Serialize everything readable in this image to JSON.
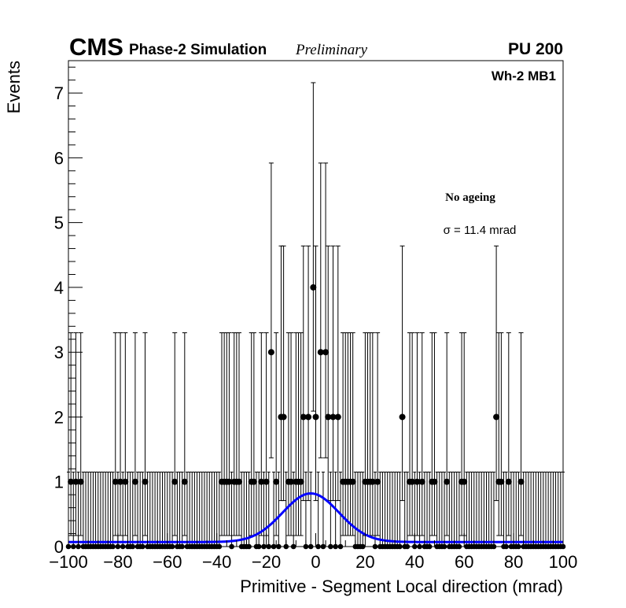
{
  "header": {
    "experiment": "CMS",
    "subtitle": "Phase-2 Simulation",
    "status": "Preliminary",
    "pileup": "PU 200"
  },
  "chamber_label": "Wh-2 MB1",
  "annotations": {
    "condition": "No ageing",
    "sigma_text": "σ = 11.4 mrad"
  },
  "chart_data": {
    "type": "scatter",
    "xlabel": "Primitive - Segment Local direction (mrad)",
    "ylabel": "Events",
    "xlim": [
      -100,
      100
    ],
    "ylim": [
      0,
      7.5
    ],
    "x_ticks": [
      "−100",
      "−80",
      "−60",
      "−40",
      "−20",
      "0",
      "20",
      "40",
      "60",
      "80",
      "100"
    ],
    "y_ticks": [
      "0",
      "1",
      "2",
      "3",
      "4",
      "5",
      "6",
      "7"
    ],
    "grid": false,
    "series": [
      {
        "marker": "filled circle with Poisson error bars",
        "color": "#000000",
        "points": [
          {
            "x": -18,
            "y": 3
          },
          {
            "x": -14,
            "y": 2
          },
          {
            "x": -13,
            "y": 2
          },
          {
            "x": -5,
            "y": 2
          },
          {
            "x": -3,
            "y": 2
          },
          {
            "x": -1,
            "y": 4
          },
          {
            "x": 0,
            "y": 2
          },
          {
            "x": 2,
            "y": 3
          },
          {
            "x": 4,
            "y": 3
          },
          {
            "x": 5,
            "y": 2
          },
          {
            "x": 7,
            "y": 2
          },
          {
            "x": 9,
            "y": 2
          },
          {
            "x": 35,
            "y": 2
          },
          {
            "x": 73,
            "y": 2
          },
          {
            "x": -99,
            "y": 1
          },
          {
            "x": -97,
            "y": 1
          },
          {
            "x": -95,
            "y": 1
          },
          {
            "x": -81,
            "y": 1
          },
          {
            "x": -79,
            "y": 1
          },
          {
            "x": -77,
            "y": 1
          },
          {
            "x": -73,
            "y": 1
          },
          {
            "x": -69,
            "y": 1
          },
          {
            "x": -57,
            "y": 1
          },
          {
            "x": -53,
            "y": 1
          },
          {
            "x": -38,
            "y": 1
          },
          {
            "x": -37,
            "y": 1
          },
          {
            "x": -36,
            "y": 1
          },
          {
            "x": -35,
            "y": 1
          },
          {
            "x": -33,
            "y": 1
          },
          {
            "x": -32,
            "y": 1
          },
          {
            "x": -31,
            "y": 1
          },
          {
            "x": -26,
            "y": 1
          },
          {
            "x": -25,
            "y": 1
          },
          {
            "x": -22,
            "y": 1
          },
          {
            "x": -20,
            "y": 1
          },
          {
            "x": -16,
            "y": 1
          },
          {
            "x": -11,
            "y": 1
          },
          {
            "x": -10,
            "y": 1
          },
          {
            "x": -8,
            "y": 1
          },
          {
            "x": -7,
            "y": 1
          },
          {
            "x": -6,
            "y": 1
          },
          {
            "x": 11,
            "y": 1
          },
          {
            "x": 12,
            "y": 1
          },
          {
            "x": 13,
            "y": 1
          },
          {
            "x": 14,
            "y": 1
          },
          {
            "x": 15,
            "y": 1
          },
          {
            "x": 20,
            "y": 1
          },
          {
            "x": 21,
            "y": 1
          },
          {
            "x": 22,
            "y": 1
          },
          {
            "x": 23,
            "y": 1
          },
          {
            "x": 25,
            "y": 1
          },
          {
            "x": 38,
            "y": 1
          },
          {
            "x": 39,
            "y": 1
          },
          {
            "x": 41,
            "y": 1
          },
          {
            "x": 43,
            "y": 1
          },
          {
            "x": 47,
            "y": 1
          },
          {
            "x": 48,
            "y": 1
          },
          {
            "x": 53,
            "y": 1
          },
          {
            "x": 59,
            "y": 1
          },
          {
            "x": 60,
            "y": 1
          },
          {
            "x": 74,
            "y": 1
          },
          {
            "x": 75,
            "y": 1
          },
          {
            "x": 78,
            "y": 1
          },
          {
            "x": 83,
            "y": 1
          }
        ]
      },
      {
        "type": "line",
        "color": "#0000ff",
        "description": "Gaussian fit plus constant",
        "amplitude": 0.82,
        "mean": -2,
        "sigma": 11.4,
        "baseline": 0.07
      }
    ]
  }
}
